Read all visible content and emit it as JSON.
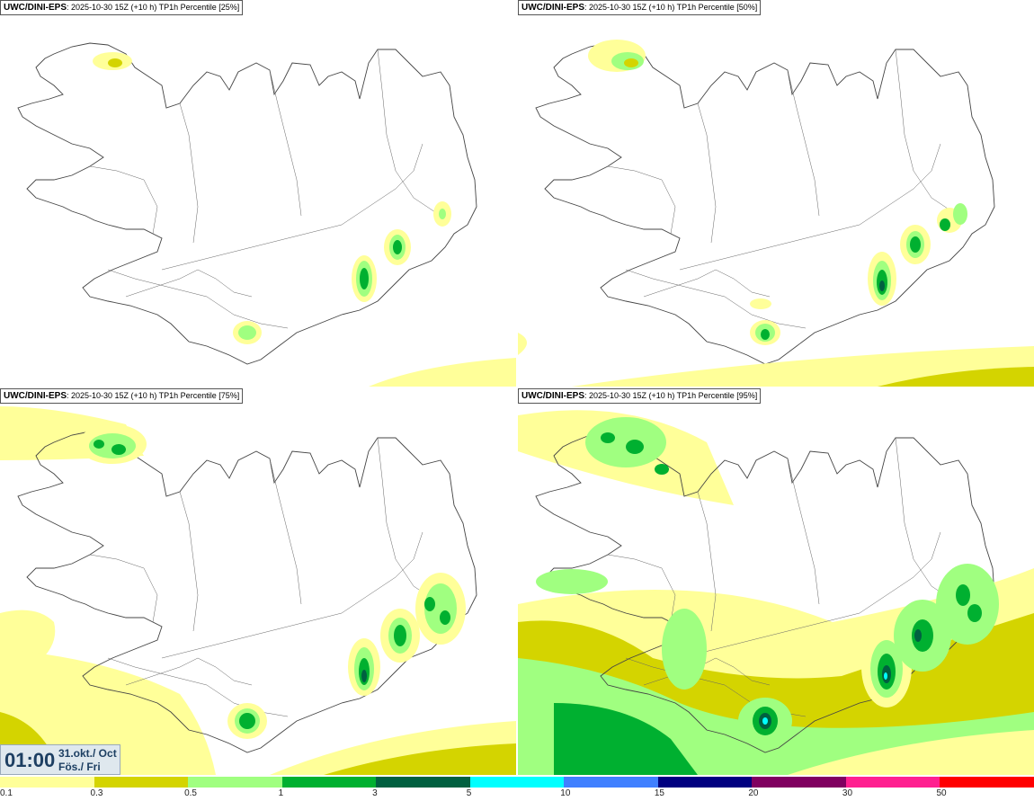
{
  "panels": [
    {
      "model": "UWC/DINI-EPS",
      "run": ": 2025-10-30 15Z (+10 h)",
      "product": "TP1h Percentile [25%]"
    },
    {
      "model": "UWC/DINI-EPS",
      "run": ": 2025-10-30 15Z (+10 h)",
      "product": "TP1h Percentile [50%]"
    },
    {
      "model": "UWC/DINI-EPS",
      "run": ": 2025-10-30 15Z (+10 h)",
      "product": "TP1h Percentile [75%]"
    },
    {
      "model": "UWC/DINI-EPS",
      "run": ": 2025-10-30 15Z (+10 h)",
      "product": "TP1h Percentile [95%]"
    }
  ],
  "valid_time": {
    "time": "01:00",
    "date_line1": "31.okt./ Oct",
    "date_line2": "Fös./ Fri"
  },
  "legend": {
    "thresholds": [
      "0.1",
      "0.3",
      "0.5",
      "1",
      "3",
      "5",
      "10",
      "15",
      "20",
      "30",
      "50"
    ],
    "colors": [
      "#ffff99",
      "#d4d400",
      "#a0ff80",
      "#00b030",
      "#006040",
      "#00ffff",
      "#4080ff",
      "#000080",
      "#800060",
      "#ff2090",
      "#ff0000"
    ]
  }
}
